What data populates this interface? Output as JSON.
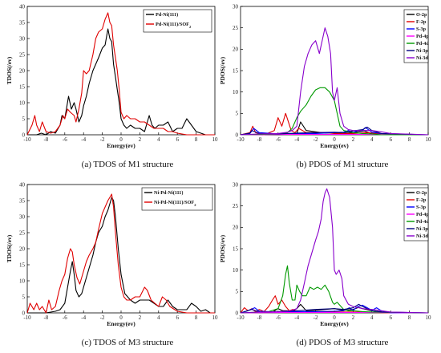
{
  "chart_data": [
    {
      "type": "line",
      "caption": "(a) TDOS of M1 structure",
      "xlabel": "Energy(ev)",
      "ylabel": "TDOS(/ev)",
      "xlim": [
        -10,
        10
      ],
      "ylim": [
        0,
        40
      ],
      "xticks": [
        -10,
        -8,
        -6,
        -4,
        -2,
        0,
        2,
        4,
        6,
        8,
        10
      ],
      "yticks": [
        0,
        5,
        10,
        15,
        20,
        25,
        30,
        35,
        40
      ],
      "legend_position": "top-right",
      "series": [
        {
          "name": "Pd-Ni(111)",
          "color": "#000000",
          "x": [
            -10,
            -9,
            -8.5,
            -8,
            -7.5,
            -7,
            -6.5,
            -6.3,
            -6,
            -5.6,
            -5.3,
            -5,
            -4.8,
            -4.5,
            -4.2,
            -4,
            -3.7,
            -3.4,
            -3,
            -2.7,
            -2.4,
            -2,
            -1.7,
            -1.4,
            -1.2,
            -1,
            -0.8,
            -0.6,
            -0.4,
            -0.2,
            0,
            0.3,
            0.6,
            1,
            1.5,
            2,
            2.5,
            3,
            3.3,
            3.6,
            4,
            4.5,
            5,
            5.5,
            6,
            6.5,
            7,
            7.5,
            8,
            8.5,
            9,
            10
          ],
          "y": [
            0,
            0,
            0.5,
            0,
            1,
            0.5,
            3,
            6,
            5,
            12,
            8,
            10,
            8,
            4,
            6,
            9,
            12,
            16,
            20,
            22,
            24,
            27,
            28,
            33,
            30,
            29,
            22,
            18,
            14,
            10,
            5,
            3,
            2,
            3,
            2,
            2,
            1,
            6,
            3,
            2,
            3,
            3,
            4,
            1,
            2,
            2,
            5,
            3,
            1,
            0.5,
            0,
            0
          ]
        },
        {
          "name": "Pd-Ni(111)/SOF2",
          "color": "#e00000",
          "x": [
            -10,
            -9.5,
            -9.2,
            -9,
            -8.7,
            -8.4,
            -8,
            -7.5,
            -7,
            -6.5,
            -6.2,
            -6,
            -5.7,
            -5.4,
            -5,
            -4.8,
            -4.5,
            -4.2,
            -4,
            -3.7,
            -3.4,
            -3,
            -2.7,
            -2.4,
            -2,
            -1.7,
            -1.4,
            -1.2,
            -1,
            -0.8,
            -0.6,
            -0.4,
            -0.2,
            0,
            0.3,
            0.6,
            1,
            1.5,
            2,
            2.5,
            3,
            3.5,
            4,
            4.5,
            5,
            5.5,
            6,
            7,
            8,
            9,
            10
          ],
          "y": [
            0,
            3,
            6,
            3,
            1,
            4,
            1,
            0.5,
            1,
            3,
            6,
            5,
            8,
            7,
            6,
            4,
            8,
            13,
            20,
            19,
            20,
            25,
            30,
            32,
            33,
            36,
            38,
            35,
            34,
            28,
            24,
            20,
            14,
            7,
            5,
            6,
            5,
            5,
            4,
            4,
            3,
            2,
            2,
            2,
            1,
            1,
            0.5,
            0,
            0,
            0,
            0
          ]
        }
      ]
    },
    {
      "type": "line",
      "caption": "(b) PDOS of M1 structure",
      "xlabel": "Energy(ev)",
      "ylabel": "PDOS(/ev)",
      "xlim": [
        -10,
        10
      ],
      "ylim": [
        0,
        30
      ],
      "xticks": [
        -10,
        -8,
        -6,
        -4,
        -2,
        0,
        2,
        4,
        6,
        8,
        10
      ],
      "yticks": [
        0,
        5,
        10,
        15,
        20,
        25,
        30
      ],
      "legend_position": "top-right",
      "series": [
        {
          "name": "O-2p",
          "color": "#000000",
          "x": [
            -10,
            -8,
            -6,
            -4,
            -3.6,
            -3,
            -1,
            0,
            1,
            2,
            3.2,
            4,
            6,
            8,
            10
          ],
          "y": [
            0,
            0,
            0,
            0.3,
            3,
            1,
            0.4,
            0.5,
            0.3,
            0.5,
            0.9,
            0.2,
            0,
            0,
            0
          ]
        },
        {
          "name": "F-2p",
          "color": "#e00000",
          "x": [
            -10,
            -9,
            -8.7,
            -8.4,
            -7.5,
            -6.4,
            -6,
            -5.6,
            -5.2,
            -4.6,
            -4.2,
            -3.8,
            -3,
            -1,
            0,
            2,
            3.5,
            6,
            10
          ],
          "y": [
            0,
            0.5,
            2,
            0.5,
            0,
            1,
            4,
            2,
            5,
            1,
            0.5,
            1.5,
            0.5,
            0.5,
            0.3,
            0.3,
            0.5,
            0,
            0
          ]
        },
        {
          "name": "S-3p",
          "color": "#0000ff",
          "x": [
            -10,
            -9,
            -8.6,
            -8,
            -6,
            -4,
            -2,
            0,
            1,
            1.5,
            2,
            2.5,
            3,
            3.3,
            4,
            5,
            6,
            10
          ],
          "y": [
            0,
            0.3,
            1.5,
            0.5,
            0.2,
            0.3,
            0.3,
            0.5,
            0.6,
            1,
            0.5,
            1,
            1,
            1.7,
            0.6,
            0.3,
            0,
            0
          ]
        },
        {
          "name": "Pd-4p",
          "color": "#ff00ff",
          "x": [
            -10,
            -5,
            0,
            5,
            10
          ],
          "y": [
            0,
            0.1,
            0.1,
            0.1,
            0
          ]
        },
        {
          "name": "Pd-4d",
          "color": "#009900",
          "x": [
            -10,
            -6,
            -5,
            -4.5,
            -4,
            -3.6,
            -3,
            -2.5,
            -2,
            -1.5,
            -1,
            -0.5,
            0,
            0.3,
            0.6,
            1,
            2,
            3,
            4,
            5,
            10
          ],
          "y": [
            0,
            0.2,
            0.5,
            1.5,
            4,
            5.5,
            7,
            9,
            10.5,
            11,
            11,
            10,
            8,
            5,
            2,
            1,
            0.5,
            0.3,
            0.2,
            0,
            0
          ]
        },
        {
          "name": "Ni-3p",
          "color": "#000080",
          "x": [
            -10,
            -9,
            -8.8,
            -8,
            -6,
            -4,
            -2,
            0,
            1,
            2,
            3,
            3.5,
            4,
            5,
            10
          ],
          "y": [
            0,
            0.4,
            1,
            0.3,
            0.2,
            0.4,
            0.5,
            0.6,
            0.5,
            0.9,
            1.2,
            1.8,
            1,
            0.3,
            0
          ]
        },
        {
          "name": "Ni-3d",
          "color": "#8800cc",
          "x": [
            -10,
            -8,
            -6,
            -5,
            -4.5,
            -4,
            -3.6,
            -3.2,
            -2.8,
            -2.4,
            -2,
            -1.6,
            -1.3,
            -1,
            -0.7,
            -0.4,
            -0.2,
            0,
            0.3,
            0.6,
            1,
            1.5,
            2,
            3,
            4,
            5,
            6,
            10
          ],
          "y": [
            0,
            0.2,
            0.3,
            0.6,
            1,
            2,
            10,
            16,
            19,
            21,
            22,
            19,
            22,
            25,
            23,
            19,
            10,
            8,
            11,
            5,
            2,
            1.2,
            1,
            1,
            1,
            0.7,
            0.3,
            0
          ]
        }
      ]
    },
    {
      "type": "line",
      "caption": "(c) TDOS of M3 structure",
      "xlabel": "Energy(ev)",
      "ylabel": "TDOS(/ev)",
      "xlim": [
        -10,
        10
      ],
      "ylim": [
        0,
        40
      ],
      "xticks": [
        -10,
        -8,
        -6,
        -4,
        -2,
        0,
        2,
        4,
        6,
        8,
        10
      ],
      "yticks": [
        0,
        5,
        10,
        15,
        20,
        25,
        30,
        35,
        40
      ],
      "legend_position": "top-right",
      "series": [
        {
          "name": "Ni-Pd-Ni(111)",
          "color": "#000000",
          "x": [
            -10,
            -8,
            -7,
            -6.5,
            -6,
            -5.7,
            -5.4,
            -5.2,
            -5,
            -4.8,
            -4.5,
            -4.2,
            -4,
            -3.7,
            -3.4,
            -3,
            -2.7,
            -2.4,
            -2,
            -1.7,
            -1.4,
            -1.2,
            -1,
            -0.8,
            -0.6,
            -0.3,
            0,
            0.4,
            1,
            1.5,
            2,
            2.5,
            3,
            3.5,
            4,
            4.5,
            5,
            5.5,
            6,
            7,
            7.5,
            8,
            8.5,
            9,
            9.5,
            10
          ],
          "y": [
            0,
            0,
            0.5,
            1,
            3,
            8,
            13,
            16,
            12,
            7,
            5,
            6,
            8,
            11,
            14,
            18,
            22,
            25,
            27,
            30,
            32,
            34,
            36,
            35,
            30,
            20,
            12,
            6,
            4,
            3,
            4,
            4,
            4,
            3,
            2,
            2,
            4,
            2,
            1,
            1,
            3,
            2,
            0.5,
            1,
            0,
            0
          ]
        },
        {
          "name": "Ni-Pd-Ni(111)/SOF2",
          "color": "#e00000",
          "x": [
            -10,
            -9.7,
            -9.3,
            -9,
            -8.7,
            -8.4,
            -8,
            -7.7,
            -7.4,
            -7,
            -6.6,
            -6.3,
            -6,
            -5.7,
            -5.4,
            -5.2,
            -5,
            -4.7,
            -4.4,
            -4,
            -3.7,
            -3.4,
            -3,
            -2.7,
            -2.4,
            -2,
            -1.7,
            -1.4,
            -1.2,
            -1,
            -0.8,
            -0.6,
            -0.3,
            0,
            0.3,
            0.6,
            1,
            1.5,
            2,
            2.5,
            2.8,
            3.2,
            3.6,
            4,
            4.4,
            4.8,
            5.2,
            6,
            7,
            8,
            10
          ],
          "y": [
            0,
            3,
            1,
            3,
            1,
            2,
            0,
            4,
            1,
            2,
            7,
            10,
            12,
            17,
            20,
            19,
            15,
            11,
            9,
            13,
            16,
            18,
            20,
            22,
            26,
            31,
            33,
            35,
            36,
            37,
            33,
            25,
            15,
            8,
            5,
            4,
            4,
            5,
            5,
            8,
            7,
            4,
            3,
            2,
            5,
            4,
            2,
            0.5,
            0,
            0,
            0
          ]
        }
      ]
    },
    {
      "type": "line",
      "caption": "(d) PDOS of M3 structure",
      "xlabel": "Energy(ev)",
      "ylabel": "PDOS(/ev)",
      "xlim": [
        -10,
        10
      ],
      "ylim": [
        0,
        30
      ],
      "xticks": [
        -10,
        -8,
        -6,
        -4,
        -2,
        0,
        2,
        4,
        6,
        8,
        10
      ],
      "yticks": [
        0,
        5,
        10,
        15,
        20,
        25,
        30
      ],
      "legend_position": "top-right",
      "series": [
        {
          "name": "O-2p",
          "color": "#000000",
          "x": [
            -10,
            -8,
            -6.5,
            -6,
            -5.5,
            -4.5,
            -4,
            -3.6,
            -3,
            -2,
            -1,
            0,
            1,
            2,
            2.6,
            3,
            4,
            6,
            10
          ],
          "y": [
            0,
            0,
            0.3,
            1,
            0.5,
            0.5,
            1,
            2,
            0.5,
            0.6,
            0.8,
            1,
            0.6,
            0.8,
            1.3,
            1,
            0.5,
            0,
            0
          ]
        },
        {
          "name": "F-2p",
          "color": "#e00000",
          "x": [
            -10,
            -9.6,
            -9.2,
            -8.8,
            -8.4,
            -8,
            -7.5,
            -7,
            -6.6,
            -6.3,
            -6,
            -5.6,
            -5.2,
            -4.8,
            -4.4,
            -4,
            -3,
            -1,
            0,
            2,
            4,
            6,
            10
          ],
          "y": [
            0,
            1.2,
            0.5,
            1,
            0.3,
            0.8,
            0.3,
            1.5,
            3,
            4,
            2,
            3,
            1.5,
            0.5,
            0.8,
            0.3,
            0.2,
            0.2,
            0.2,
            0.2,
            0.1,
            0,
            0
          ]
        },
        {
          "name": "S-3p",
          "color": "#0000ff",
          "x": [
            -10,
            -9.2,
            -8.5,
            -8,
            -6,
            -4,
            -2,
            0,
            1,
            1.6,
            2,
            2.5,
            3,
            3.5,
            4,
            4.5,
            5,
            6,
            10
          ],
          "y": [
            0,
            0.5,
            1.2,
            0.4,
            0.2,
            0.3,
            0.3,
            0.4,
            0.5,
            1.2,
            0.6,
            1.5,
            1.8,
            1.2,
            0.6,
            1.2,
            0.5,
            0,
            0
          ]
        },
        {
          "name": "Pd-4p",
          "color": "#ff00ff",
          "x": [
            -10,
            -5,
            0,
            5,
            10
          ],
          "y": [
            0,
            0.1,
            0.1,
            0.1,
            0
          ]
        },
        {
          "name": "Pd-4d",
          "color": "#009900",
          "x": [
            -10,
            -7,
            -6,
            -5.5,
            -5.2,
            -5,
            -4.8,
            -4.5,
            -4.2,
            -4,
            -3.7,
            -3.4,
            -3,
            -2.6,
            -2.2,
            -1.8,
            -1.4,
            -1,
            -0.6,
            -0.2,
            0,
            0.3,
            0.7,
            1,
            1.5,
            2,
            3,
            4,
            10
          ],
          "y": [
            0,
            0.3,
            1,
            4,
            9,
            11,
            7,
            3,
            3,
            6.5,
            5,
            4,
            4,
            6,
            5.5,
            6,
            5.5,
            6.5,
            5,
            2.5,
            2,
            2.5,
            1.5,
            0.8,
            0.5,
            0.5,
            0.3,
            0.2,
            0
          ]
        },
        {
          "name": "Ni-3p",
          "color": "#000080",
          "x": [
            -10,
            -8.8,
            -8,
            -6,
            -4,
            -2,
            0,
            1,
            2,
            2.6,
            3,
            3.5,
            4,
            5,
            10
          ],
          "y": [
            0,
            0.8,
            0.2,
            0.3,
            0.5,
            0.8,
            1,
            0.8,
            1.2,
            2,
            1.5,
            1,
            0.5,
            0.2,
            0
          ]
        },
        {
          "name": "Ni-3d",
          "color": "#8800cc",
          "x": [
            -10,
            -8,
            -6,
            -5,
            -4.5,
            -4,
            -3.6,
            -3.2,
            -2.8,
            -2.4,
            -2,
            -1.7,
            -1.4,
            -1.2,
            -1,
            -0.8,
            -0.5,
            -0.2,
            0,
            0.2,
            0.5,
            0.8,
            1,
            1.5,
            2,
            3,
            4,
            5,
            6,
            10
          ],
          "y": [
            0,
            0.2,
            0.3,
            0.4,
            0.6,
            1,
            3,
            7,
            11,
            14,
            17,
            19,
            22,
            26,
            28,
            29,
            27,
            20,
            10,
            9,
            10,
            8,
            4,
            2,
            1.5,
            1,
            0.8,
            0.5,
            0.2,
            0
          ]
        }
      ]
    }
  ]
}
